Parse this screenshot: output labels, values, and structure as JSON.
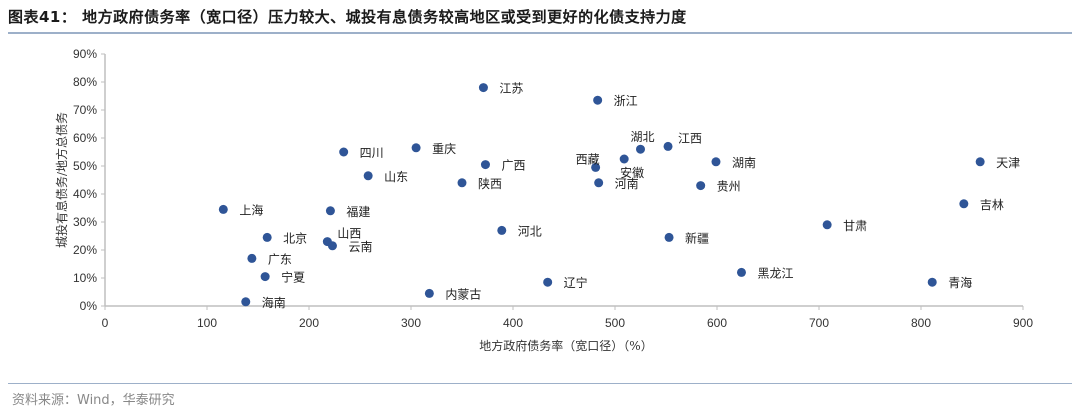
{
  "header": {
    "title": "图表41： 地方政府债务率（宽口径）压力较大、城投有息债务较高地区或受到更好的化债支持力度"
  },
  "footer": {
    "source": "资料来源：Wind，华泰研究"
  },
  "colors": {
    "marker": "#2f5597",
    "axis": "#bfbfbf",
    "rule": "#9db0c9"
  },
  "chart_data": {
    "type": "scatter",
    "title": "地方政府债务率（宽口径）压力较大、城投有息债务较高地区或受到更好的化债支持力度",
    "xlabel": "地方政府债务率（宽口径）（%）",
    "ylabel": "城投有息债务/地方总债务",
    "xlim": [
      0,
      900
    ],
    "ylim": [
      0,
      90
    ],
    "x_ticks": [
      "0",
      "100",
      "200",
      "300",
      "400",
      "500",
      "600",
      "700",
      "800",
      "900"
    ],
    "y_ticks": [
      "0%",
      "10%",
      "20%",
      "30%",
      "40%",
      "50%",
      "60%",
      "70%",
      "80%",
      "90%"
    ],
    "grid": false,
    "legend": null,
    "points": [
      {
        "name": "上海",
        "x": 116,
        "y": 34.5,
        "label_pos": "right"
      },
      {
        "name": "北京",
        "x": 159,
        "y": 24.5,
        "label_pos": "right"
      },
      {
        "name": "广东",
        "x": 144,
        "y": 17,
        "label_pos": "right"
      },
      {
        "name": "宁夏",
        "x": 157,
        "y": 10.5,
        "label_pos": "right"
      },
      {
        "name": "海南",
        "x": 138,
        "y": 1.5,
        "label_pos": "right"
      },
      {
        "name": "福建",
        "x": 221,
        "y": 34,
        "label_pos": "right"
      },
      {
        "name": "山西",
        "x": 218,
        "y": 23,
        "label_pos": "above-right"
      },
      {
        "name": "云南",
        "x": 223,
        "y": 21.5,
        "label_pos": "right"
      },
      {
        "name": "四川",
        "x": 234,
        "y": 55,
        "label_pos": "right"
      },
      {
        "name": "山东",
        "x": 258,
        "y": 46.5,
        "label_pos": "right"
      },
      {
        "name": "重庆",
        "x": 305,
        "y": 56.5,
        "label_pos": "right"
      },
      {
        "name": "广西",
        "x": 373,
        "y": 50.5,
        "label_pos": "right"
      },
      {
        "name": "陕西",
        "x": 350,
        "y": 44,
        "label_pos": "right"
      },
      {
        "name": "江苏",
        "x": 371,
        "y": 78,
        "label_pos": "right"
      },
      {
        "name": "浙江",
        "x": 483,
        "y": 73.5,
        "label_pos": "right"
      },
      {
        "name": "河北",
        "x": 389,
        "y": 27,
        "label_pos": "right"
      },
      {
        "name": "内蒙古",
        "x": 318,
        "y": 4.5,
        "label_pos": "right"
      },
      {
        "name": "辽宁",
        "x": 434,
        "y": 8.5,
        "label_pos": "right"
      },
      {
        "name": "西藏",
        "x": 481,
        "y": 49.5,
        "label_pos": "above-left"
      },
      {
        "name": "安徽",
        "x": 509,
        "y": 52.5,
        "label_pos": "below-right"
      },
      {
        "name": "湖北",
        "x": 525,
        "y": 56,
        "label_pos": "above"
      },
      {
        "name": "江西",
        "x": 552,
        "y": 57,
        "label_pos": "above-right"
      },
      {
        "name": "河南",
        "x": 484,
        "y": 44,
        "label_pos": "right"
      },
      {
        "name": "湖南",
        "x": 599,
        "y": 51.5,
        "label_pos": "right"
      },
      {
        "name": "贵州",
        "x": 584,
        "y": 43,
        "label_pos": "right"
      },
      {
        "name": "新疆",
        "x": 553,
        "y": 24.5,
        "label_pos": "right"
      },
      {
        "name": "黑龙江",
        "x": 624,
        "y": 12,
        "label_pos": "right"
      },
      {
        "name": "甘肃",
        "x": 708,
        "y": 29,
        "label_pos": "right"
      },
      {
        "name": "天津",
        "x": 858,
        "y": 51.5,
        "label_pos": "right"
      },
      {
        "name": "吉林",
        "x": 842,
        "y": 36.5,
        "label_pos": "right"
      },
      {
        "name": "青海",
        "x": 811,
        "y": 8.5,
        "label_pos": "right"
      }
    ]
  }
}
